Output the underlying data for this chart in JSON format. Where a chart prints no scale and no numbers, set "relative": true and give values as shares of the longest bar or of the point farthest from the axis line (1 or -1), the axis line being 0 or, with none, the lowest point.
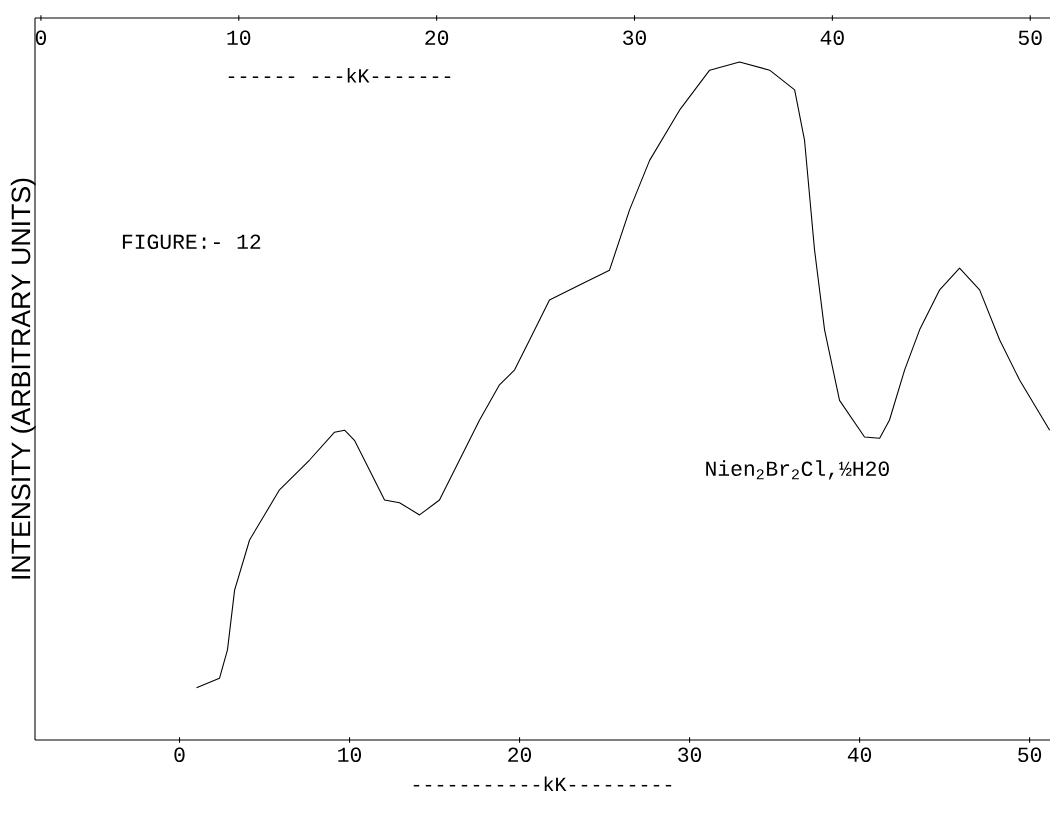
{
  "chart_data": {
    "type": "line",
    "relative": true,
    "color": "#000000",
    "line_style": "solid",
    "marker": "none",
    "x": [
      1.0,
      2.35,
      2.82,
      3.24,
      4.12,
      5.88,
      7.65,
      9.12,
      9.71,
      10.29,
      11.18,
      12.06,
      12.94,
      14.12,
      15.29,
      16.47,
      17.65,
      18.82,
      19.71,
      20.59,
      21.76,
      23.53,
      25.29,
      26.47,
      27.65,
      29.41,
      31.18,
      32.94,
      34.71,
      36.18,
      36.76,
      37.35,
      37.94,
      38.82,
      40.29,
      41.18,
      41.76,
      42.65,
      43.53,
      44.71,
      45.88,
      47.06,
      48.24,
      49.41,
      51.18
    ],
    "values": [
      0.077,
      0.091,
      0.133,
      0.221,
      0.295,
      0.369,
      0.413,
      0.454,
      0.457,
      0.442,
      0.398,
      0.354,
      0.35,
      0.332,
      0.354,
      0.413,
      0.472,
      0.524,
      0.546,
      0.59,
      0.649,
      0.671,
      0.693,
      0.782,
      0.855,
      0.929,
      0.988,
      1,
      0.988,
      0.959,
      0.885,
      0.723,
      0.605,
      0.501,
      0.447,
      0.445,
      0.472,
      0.546,
      0.605,
      0.664,
      0.696,
      0.664,
      0.59,
      0.531,
      0.457
    ],
    "xlim": [
      -8.5,
      51.2
    ],
    "xticks": [
      0,
      10,
      20,
      30,
      40,
      50
    ],
    "x2lim": [
      -0.3,
      51
    ],
    "x2ticks": [
      0,
      10,
      20,
      30,
      40,
      50
    ],
    "xlabel": "-----------kK---------",
    "x2label": "------ ---kK-------",
    "ylabel": "INTENSITY (ARBITRARY UNITS)",
    "annotations": [
      "FIGURE:- 12",
      "Nien$_{2}$Br$_{2}$Cl,½H20"
    ]
  }
}
